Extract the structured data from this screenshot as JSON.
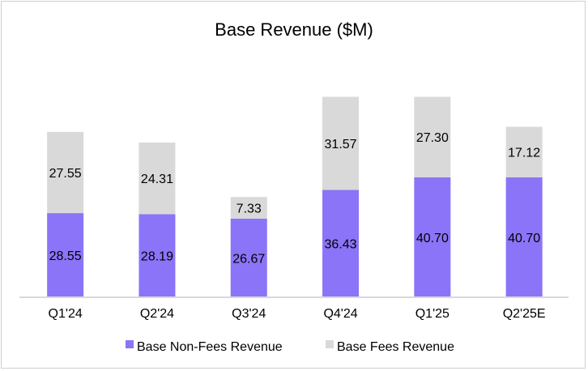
{
  "chart_data": {
    "type": "bar",
    "stacked": true,
    "title": "Base Revenue ($M)",
    "xlabel": "",
    "ylabel": "",
    "categories": [
      "Q1'24",
      "Q2'24",
      "Q3'24",
      "Q4'24",
      "Q1'25",
      "Q2'25E"
    ],
    "series": [
      {
        "name": "Base Non-Fees Revenue",
        "color": "#8B74F7",
        "values": [
          28.55,
          28.19,
          26.67,
          36.43,
          40.7,
          40.7
        ]
      },
      {
        "name": "Base Fees Revenue",
        "color": "#D9D9D9",
        "values": [
          27.55,
          24.31,
          7.33,
          31.57,
          27.3,
          17.12
        ]
      }
    ],
    "data_labels": [
      [
        "28.55",
        "28.19",
        "26.67",
        "36.43",
        "40.70",
        "40.70"
      ],
      [
        "27.55",
        "24.31",
        "7.33",
        "31.57",
        "27.30",
        "17.12"
      ]
    ],
    "ylim": [
      0,
      70
    ],
    "y_axis_visible": false,
    "grid": false,
    "legend": "bottom"
  }
}
